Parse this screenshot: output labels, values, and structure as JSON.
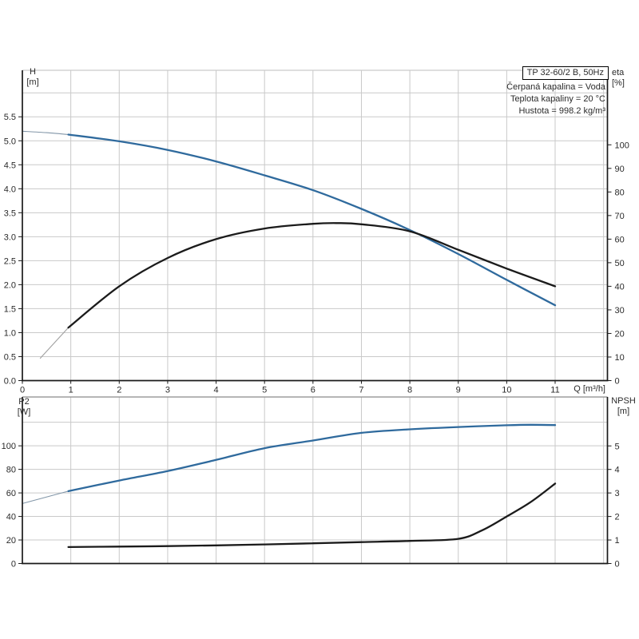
{
  "header": {
    "title_box": "TP 32-60/2 B, 50Hz",
    "conditions": [
      "Čerpaná kapalina = Voda",
      "Teplota kapaliny = 20 °C",
      "Hustota = 998.2 kg/m³"
    ]
  },
  "axis_labels": {
    "h_line1": "H",
    "h_line2": "[m]",
    "eta_line1": "eta",
    "eta_line2": "[%]",
    "p2_line1": "P2",
    "p2_line2": "[W]",
    "npsh_line1": "NPSH",
    "npsh_line2": "[m]",
    "q": "Q [m³/h]"
  },
  "colors": {
    "blue": "#2f6a9d",
    "black": "#1b1b1b",
    "thinBlue": "#8296a8",
    "thinGray": "#a0a0a0",
    "grid": "#c9c9c9",
    "axis": "#1a1a1a",
    "topBorderLight": "#c9c9c9",
    "topBorderDark": "#8a8a8a",
    "text": "#2b2b2b"
  },
  "chart_data": [
    {
      "type": "line",
      "title": "TP 32-60/2 B, 50Hz — QH and efficiency curves",
      "xlabel": "Q [m³/h]",
      "x": {
        "range": [
          0,
          12.08
        ],
        "ticks": [
          "0",
          "1",
          "2",
          "3",
          "4",
          "5",
          "6",
          "7",
          "8",
          "9",
          "10",
          "11"
        ],
        "grid": [
          1,
          2,
          3,
          4,
          5,
          6,
          7,
          8,
          9,
          10,
          11,
          12
        ]
      },
      "left": {
        "label": "H [m]",
        "range": [
          0,
          6.47
        ],
        "ticks": [
          "0.0",
          "0.5",
          "1.0",
          "1.5",
          "2.0",
          "2.5",
          "3.0",
          "3.5",
          "4.0",
          "4.5",
          "5.0",
          "5.5"
        ],
        "grid": [
          0.5,
          1,
          1.5,
          2,
          2.5,
          3,
          3.5,
          4,
          4.5,
          5,
          5.5,
          6
        ]
      },
      "right": {
        "label": "eta [%]",
        "range": [
          0,
          131.6
        ],
        "ticks": [
          "0",
          "10",
          "20",
          "30",
          "40",
          "50",
          "60",
          "70",
          "80",
          "90",
          "100"
        ]
      },
      "series": [
        {
          "name": "qh-curve-lead",
          "axis": "left",
          "stroke": "thinBlue",
          "width": 1.1,
          "points": [
            [
              0,
              5.2
            ],
            [
              0.5,
              5.17
            ],
            [
              0.95,
              5.13
            ]
          ]
        },
        {
          "name": "qh-curve",
          "axis": "left",
          "stroke": "blue",
          "width": 2.3,
          "points": [
            [
              0.95,
              5.13
            ],
            [
              2,
              4.99
            ],
            [
              3,
              4.81
            ],
            [
              4,
              4.57
            ],
            [
              5,
              4.28
            ],
            [
              6,
              3.97
            ],
            [
              7,
              3.58
            ],
            [
              8,
              3.14
            ],
            [
              9,
              2.64
            ],
            [
              10,
              2.1
            ],
            [
              11,
              1.57
            ]
          ]
        },
        {
          "name": "eta-curve-lead",
          "axis": "right",
          "stroke": "thinGray",
          "width": 1.1,
          "points": [
            [
              0.37,
              9.5
            ],
            [
              0.95,
              22.5
            ]
          ]
        },
        {
          "name": "eta-curve",
          "axis": "right",
          "stroke": "black",
          "width": 2.3,
          "points": [
            [
              0.95,
              22.5
            ],
            [
              2,
              40
            ],
            [
              3,
              52
            ],
            [
              4,
              60
            ],
            [
              5,
              64.5
            ],
            [
              6,
              66.5
            ],
            [
              6.5,
              66.8
            ],
            [
              7,
              66.3
            ],
            [
              8,
              63.3
            ],
            [
              9,
              55.5
            ],
            [
              10,
              47.5
            ],
            [
              11,
              40
            ]
          ]
        }
      ]
    },
    {
      "type": "line",
      "title": "Power P2 and NPSH curves",
      "xlabel": "Q [m³/h]",
      "x": {
        "range": [
          0,
          12.08
        ],
        "ticks": [],
        "grid": [
          1,
          2,
          3,
          4,
          5,
          6,
          7,
          8,
          9,
          10,
          11,
          12
        ]
      },
      "left": {
        "label": "P2 [W]",
        "range": [
          0,
          141.5
        ],
        "ticks": [
          "0",
          "20",
          "40",
          "60",
          "80",
          "100"
        ],
        "grid": [
          20,
          40,
          60,
          80,
          100,
          120
        ]
      },
      "right": {
        "label": "NPSH [m]",
        "range": [
          0,
          7.08
        ],
        "ticks": [
          "0",
          "1",
          "2",
          "3",
          "4",
          "5"
        ]
      },
      "series": [
        {
          "name": "p2-curve-lead",
          "axis": "left",
          "stroke": "thinBlue",
          "width": 1.1,
          "points": [
            [
              0,
              51
            ],
            [
              0.95,
              61.5
            ]
          ]
        },
        {
          "name": "p2-curve",
          "axis": "left",
          "stroke": "blue",
          "width": 2.3,
          "points": [
            [
              0.95,
              61.5
            ],
            [
              2,
              70.5
            ],
            [
              3,
              78.5
            ],
            [
              4,
              88
            ],
            [
              5,
              98
            ],
            [
              6,
              104.5
            ],
            [
              7,
              111
            ],
            [
              8,
              114
            ],
            [
              9,
              116
            ],
            [
              10,
              117.5
            ],
            [
              10.5,
              117.9
            ],
            [
              11,
              117.6
            ]
          ]
        },
        {
          "name": "npsh-curve",
          "axis": "right",
          "stroke": "black",
          "width": 2.3,
          "points": [
            [
              0.95,
              0.7
            ],
            [
              2,
              0.72
            ],
            [
              3,
              0.74
            ],
            [
              4,
              0.77
            ],
            [
              5,
              0.81
            ],
            [
              6,
              0.86
            ],
            [
              7,
              0.91
            ],
            [
              8,
              0.96
            ],
            [
              9,
              1.05
            ],
            [
              9.5,
              1.42
            ],
            [
              10,
              2.0
            ],
            [
              10.5,
              2.62
            ],
            [
              11,
              3.4
            ]
          ]
        }
      ]
    }
  ]
}
